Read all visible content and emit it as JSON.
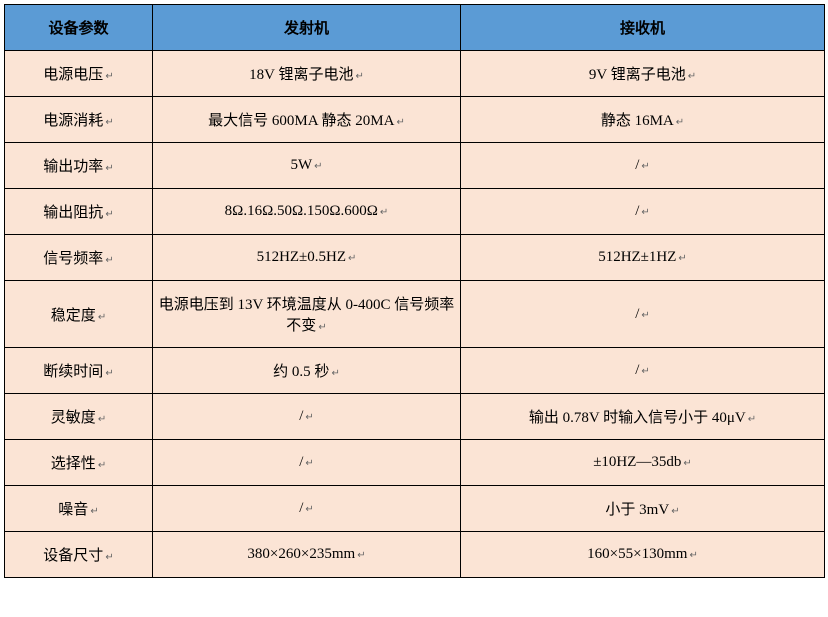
{
  "table": {
    "header_bg": "#5b9bd5",
    "body_bg": "#fbe4d5",
    "border_color": "#000000",
    "columns": [
      {
        "label": "设备参数",
        "key": "param"
      },
      {
        "label": "发射机",
        "key": "transmitter"
      },
      {
        "label": "接收机",
        "key": "receiver"
      }
    ],
    "rows": [
      {
        "param": "电源电压",
        "transmitter": "18V 锂离子电池",
        "receiver": "9V 锂离子电池"
      },
      {
        "param": "电源消耗",
        "transmitter": "最大信号 600MA 静态 20MA",
        "receiver": "静态 16MA"
      },
      {
        "param": "输出功率",
        "transmitter": "5W",
        "receiver": "/"
      },
      {
        "param": "输出阻抗",
        "transmitter": "8Ω.16Ω.50Ω.150Ω.600Ω",
        "receiver": "/"
      },
      {
        "param": "信号频率",
        "transmitter": "512HZ±0.5HZ",
        "receiver": "512HZ±1HZ"
      },
      {
        "param": "稳定度",
        "transmitter": "电源电压到 13V 环境温度从 0-400C 信号频率不变",
        "receiver": "/"
      },
      {
        "param": "断续时间",
        "transmitter": "约 0.5 秒",
        "receiver": "/"
      },
      {
        "param": "灵敏度",
        "transmitter": "/",
        "receiver": "输出 0.78V 时输入信号小于 40μV"
      },
      {
        "param": "选择性",
        "transmitter": "/",
        "receiver": "±10HZ—35db"
      },
      {
        "param": "噪音",
        "transmitter": "/",
        "receiver": "小于 3mV"
      },
      {
        "param": "设备尺寸",
        "transmitter": "380×260×235mm",
        "receiver": "160×55×130mm"
      }
    ],
    "return_mark": "↵"
  }
}
